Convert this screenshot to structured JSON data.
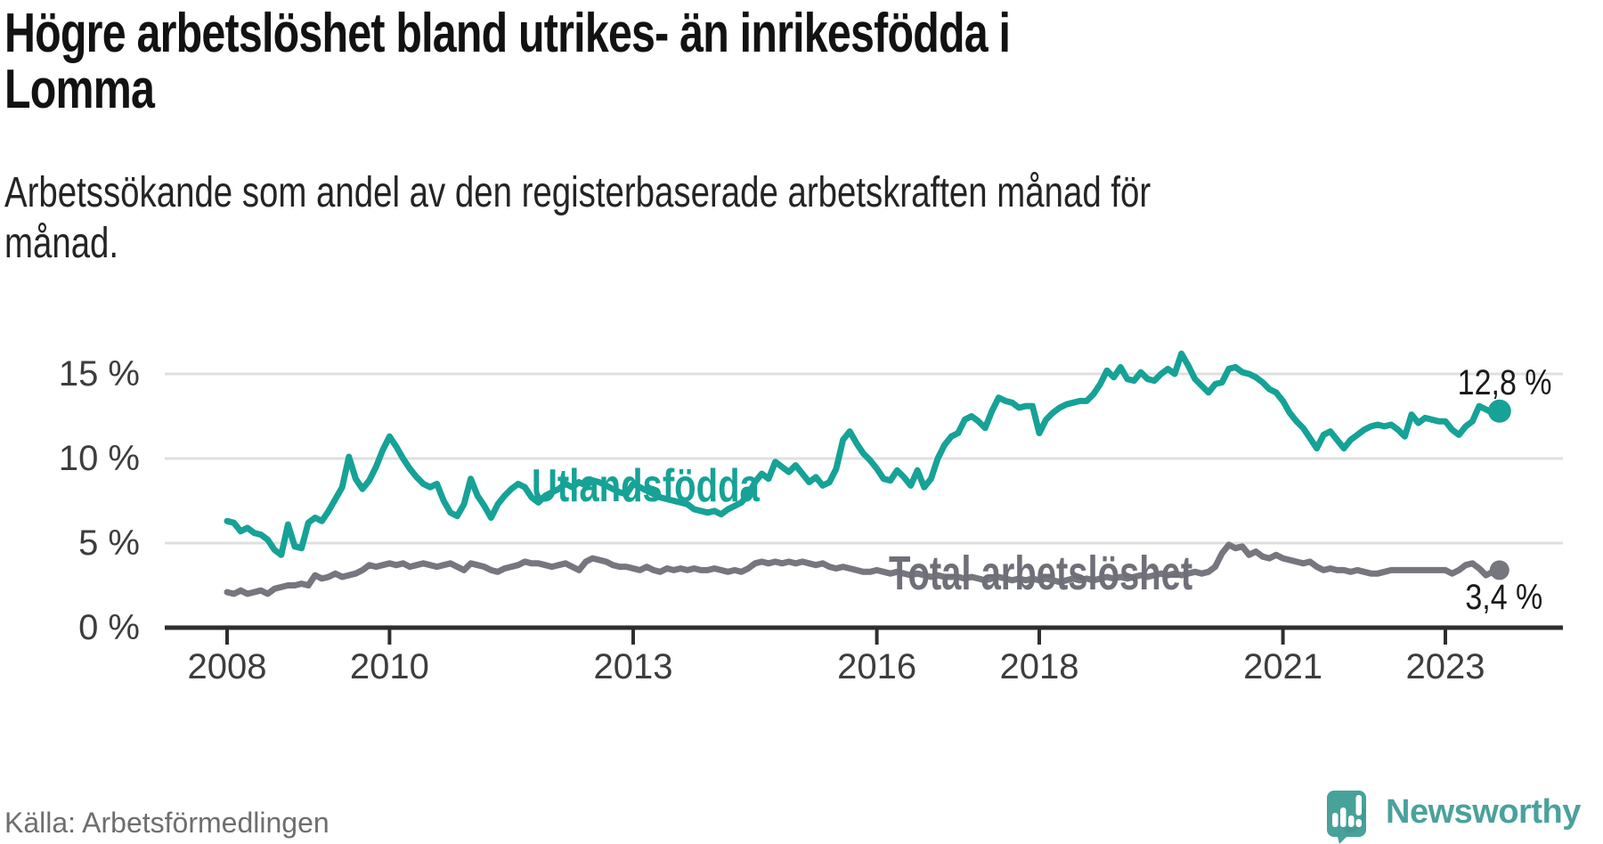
{
  "header": {
    "title_lines": [
      "Högre arbetslöshet bland utrikes- än inrikesfödda i",
      "Lomma"
    ],
    "subtitle_lines": [
      "Arbetssökande som andel av den registerbaserade arbetskraften månad för",
      "månad."
    ]
  },
  "footer": {
    "source": "Källa: Arbetsförmedlingen",
    "brand": "Newsworthy"
  },
  "colors": {
    "foreign_born_line": "#16a296",
    "total_line": "#76767e",
    "axis": "#2e2e2e",
    "gridline": "#e0e0e0",
    "brand_teal": "#47a29a",
    "title_text": "#121212",
    "tick_text": "#3d3d3d"
  },
  "chart_data": {
    "type": "line",
    "title": "Högre arbetslöshet bland utrikes- än inrikesfödda i Lomma",
    "subtitle": "Arbetssökande som andel av den registerbaserade arbetskraften månad för månad.",
    "x_unit": "month",
    "x_start": "2008-01",
    "x_end": "2023-09",
    "xlim": [
      2007.23,
      2024.45
    ],
    "ylim": [
      0,
      17.5
    ],
    "grid": true,
    "x_ticks": [
      {
        "year": 2008,
        "label": "2008"
      },
      {
        "year": 2010,
        "label": "2010"
      },
      {
        "year": 2013,
        "label": "2013"
      },
      {
        "year": 2016,
        "label": "2016"
      },
      {
        "year": 2018,
        "label": "2018"
      },
      {
        "year": 2021,
        "label": "2021"
      },
      {
        "year": 2023,
        "label": "2023"
      }
    ],
    "y_ticks": [
      {
        "value": 0,
        "label": "0 %"
      },
      {
        "value": 5,
        "label": "5 %"
      },
      {
        "value": 10,
        "label": "10 %"
      },
      {
        "value": 15,
        "label": "15 %"
      }
    ],
    "series": [
      {
        "name": "Utlandsfödda",
        "color": "#16a296",
        "end_value": 12.8,
        "end_label": "12,8 %",
        "values": [
          6.3,
          6.2,
          5.7,
          5.9,
          5.6,
          5.5,
          5.2,
          4.6,
          4.3,
          6.1,
          4.8,
          4.7,
          6.2,
          6.5,
          6.3,
          6.9,
          7.6,
          8.3,
          10.1,
          8.8,
          8.2,
          8.7,
          9.5,
          10.5,
          11.3,
          10.7,
          10.0,
          9.4,
          8.9,
          8.5,
          8.3,
          8.5,
          7.5,
          6.8,
          6.6,
          7.3,
          8.8,
          7.8,
          7.2,
          6.5,
          7.3,
          7.8,
          8.2,
          8.5,
          8.3,
          7.7,
          7.4,
          7.8,
          8.0,
          8.2,
          8.5,
          8.3,
          8.6,
          8.4,
          8.7,
          8.6,
          8.4,
          8.2,
          8.0,
          7.9,
          8.5,
          8.3,
          8.1,
          7.9,
          7.7,
          7.6,
          7.5,
          7.4,
          7.3,
          7.0,
          6.9,
          6.8,
          6.9,
          6.7,
          7.0,
          7.2,
          7.4,
          7.9,
          8.6,
          9.1,
          8.8,
          9.8,
          9.5,
          9.2,
          9.6,
          9.1,
          8.6,
          8.9,
          8.4,
          8.6,
          9.4,
          11.1,
          11.6,
          10.9,
          10.3,
          9.9,
          9.4,
          8.8,
          8.7,
          9.3,
          8.9,
          8.4,
          9.3,
          8.3,
          8.8,
          10.0,
          10.8,
          11.3,
          11.5,
          12.3,
          12.5,
          12.2,
          11.8,
          12.8,
          13.6,
          13.4,
          13.3,
          13.0,
          13.1,
          13.1,
          11.5,
          12.3,
          12.7,
          13.0,
          13.2,
          13.3,
          13.4,
          13.4,
          13.8,
          14.4,
          15.2,
          14.8,
          15.4,
          14.7,
          14.6,
          15.1,
          14.7,
          14.6,
          15.0,
          15.3,
          15.0,
          16.2,
          15.5,
          14.7,
          14.3,
          13.9,
          14.4,
          14.5,
          15.3,
          15.4,
          15.1,
          15.0,
          14.8,
          14.5,
          14.1,
          13.9,
          13.4,
          12.7,
          12.2,
          11.8,
          11.2,
          10.6,
          11.4,
          11.6,
          11.1,
          10.6,
          11.1,
          11.4,
          11.7,
          11.9,
          12.0,
          11.9,
          12.0,
          11.7,
          11.3,
          12.6,
          12.1,
          12.4,
          12.3,
          12.2,
          12.2,
          11.7,
          11.4,
          11.9,
          12.2,
          13.1,
          12.9,
          12.7,
          12.8
        ]
      },
      {
        "name": "Total arbetslöshet",
        "color": "#76767e",
        "end_value": 3.4,
        "end_label": "3,4 %",
        "values": [
          2.1,
          2.0,
          2.2,
          2.0,
          2.1,
          2.2,
          2.0,
          2.3,
          2.4,
          2.5,
          2.5,
          2.6,
          2.5,
          3.1,
          2.9,
          3.0,
          3.2,
          3.0,
          3.1,
          3.2,
          3.4,
          3.7,
          3.6,
          3.7,
          3.8,
          3.7,
          3.8,
          3.6,
          3.7,
          3.8,
          3.7,
          3.6,
          3.7,
          3.8,
          3.6,
          3.4,
          3.8,
          3.7,
          3.6,
          3.4,
          3.3,
          3.5,
          3.6,
          3.7,
          3.9,
          3.8,
          3.8,
          3.7,
          3.6,
          3.7,
          3.8,
          3.6,
          3.4,
          3.9,
          4.1,
          4.0,
          3.9,
          3.7,
          3.6,
          3.6,
          3.5,
          3.4,
          3.6,
          3.4,
          3.3,
          3.5,
          3.4,
          3.5,
          3.4,
          3.5,
          3.4,
          3.4,
          3.5,
          3.4,
          3.3,
          3.4,
          3.3,
          3.5,
          3.8,
          3.9,
          3.8,
          3.9,
          3.8,
          3.9,
          3.8,
          3.9,
          3.8,
          3.7,
          3.8,
          3.6,
          3.5,
          3.6,
          3.5,
          3.4,
          3.3,
          3.3,
          3.4,
          3.3,
          3.2,
          3.3,
          3.2,
          3.1,
          3.2,
          3.1,
          3.0,
          3.1,
          3.0,
          3.0,
          3.0,
          2.9,
          3.0,
          2.9,
          2.8,
          2.9,
          3.0,
          2.9,
          2.8,
          2.9,
          2.8,
          2.9,
          2.8,
          2.9,
          2.8,
          2.7,
          2.8,
          2.9,
          2.8,
          2.9,
          2.8,
          2.9,
          3.0,
          2.9,
          3.0,
          2.9,
          3.0,
          3.1,
          3.0,
          3.1,
          3.2,
          3.1,
          3.2,
          3.1,
          3.2,
          3.3,
          3.2,
          3.3,
          3.6,
          4.4,
          4.9,
          4.7,
          4.8,
          4.3,
          4.5,
          4.2,
          4.1,
          4.3,
          4.1,
          4.0,
          3.9,
          3.8,
          3.9,
          3.6,
          3.4,
          3.5,
          3.4,
          3.4,
          3.3,
          3.4,
          3.3,
          3.2,
          3.2,
          3.3,
          3.4,
          3.4,
          3.4,
          3.4,
          3.4,
          3.4,
          3.4,
          3.4,
          3.4,
          3.2,
          3.4,
          3.7,
          3.8,
          3.5,
          3.1,
          3.3,
          3.4
        ]
      }
    ]
  }
}
